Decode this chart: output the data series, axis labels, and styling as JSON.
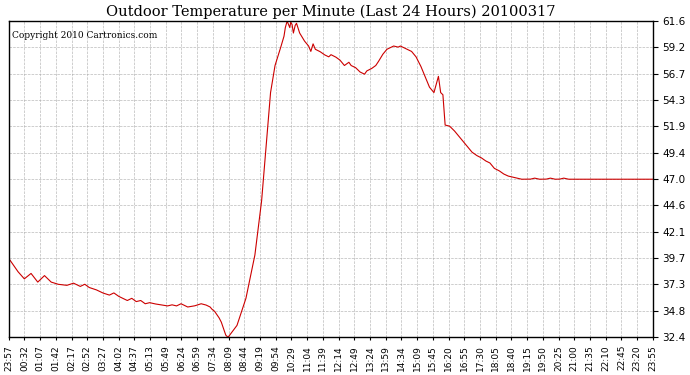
{
  "title": "Outdoor Temperature per Minute (Last 24 Hours) 20100317",
  "copyright_text": "Copyright 2010 Cartronics.com",
  "line_color": "#cc0000",
  "background_color": "#ffffff",
  "plot_bg_color": "#ffffff",
  "grid_color": "#aaaaaa",
  "ylim": [
    32.4,
    61.6
  ],
  "yticks": [
    32.4,
    34.8,
    37.3,
    39.7,
    42.1,
    44.6,
    47.0,
    49.4,
    51.9,
    54.3,
    56.7,
    59.2,
    61.6
  ],
  "xtick_labels": [
    "23:57",
    "00:32",
    "01:07",
    "01:42",
    "02:17",
    "02:52",
    "03:27",
    "04:02",
    "04:37",
    "05:13",
    "05:49",
    "06:24",
    "06:59",
    "07:34",
    "08:09",
    "08:44",
    "09:19",
    "09:54",
    "10:29",
    "11:04",
    "11:39",
    "12:14",
    "12:49",
    "13:24",
    "13:59",
    "14:34",
    "15:09",
    "15:45",
    "16:20",
    "16:55",
    "17:30",
    "18:05",
    "18:40",
    "19:15",
    "19:50",
    "20:25",
    "21:00",
    "21:35",
    "22:10",
    "22:45",
    "23:20",
    "23:55"
  ],
  "key_points_minutes": [
    [
      0,
      39.7
    ],
    [
      20,
      38.5
    ],
    [
      35,
      37.8
    ],
    [
      50,
      38.3
    ],
    [
      65,
      37.5
    ],
    [
      80,
      38.1
    ],
    [
      95,
      37.5
    ],
    [
      110,
      37.3
    ],
    [
      130,
      37.2
    ],
    [
      145,
      37.4
    ],
    [
      160,
      37.1
    ],
    [
      170,
      37.3
    ],
    [
      180,
      37.0
    ],
    [
      195,
      36.8
    ],
    [
      210,
      36.5
    ],
    [
      225,
      36.3
    ],
    [
      235,
      36.5
    ],
    [
      245,
      36.2
    ],
    [
      255,
      36.0
    ],
    [
      265,
      35.8
    ],
    [
      275,
      36.0
    ],
    [
      285,
      35.7
    ],
    [
      295,
      35.8
    ],
    [
      305,
      35.5
    ],
    [
      315,
      35.6
    ],
    [
      325,
      35.5
    ],
    [
      340,
      35.4
    ],
    [
      355,
      35.3
    ],
    [
      365,
      35.4
    ],
    [
      375,
      35.3
    ],
    [
      385,
      35.5
    ],
    [
      400,
      35.2
    ],
    [
      415,
      35.3
    ],
    [
      430,
      35.5
    ],
    [
      440,
      35.4
    ],
    [
      450,
      35.2
    ],
    [
      460,
      34.8
    ],
    [
      470,
      34.2
    ],
    [
      475,
      33.8
    ],
    [
      480,
      33.2
    ],
    [
      485,
      32.6
    ],
    [
      454,
      35.0
    ],
    [
      490,
      32.4
    ],
    [
      510,
      33.5
    ],
    [
      530,
      36.0
    ],
    [
      550,
      40.0
    ],
    [
      565,
      45.0
    ],
    [
      575,
      50.0
    ],
    [
      585,
      55.0
    ],
    [
      595,
      57.5
    ],
    [
      605,
      58.8
    ],
    [
      610,
      59.5
    ],
    [
      615,
      60.2
    ],
    [
      618,
      61.0
    ],
    [
      620,
      61.3
    ],
    [
      622,
      61.6
    ],
    [
      625,
      61.3
    ],
    [
      628,
      61.0
    ],
    [
      630,
      61.5
    ],
    [
      633,
      61.3
    ],
    [
      636,
      60.5
    ],
    [
      640,
      61.2
    ],
    [
      643,
      61.4
    ],
    [
      646,
      61.0
    ],
    [
      650,
      60.5
    ],
    [
      660,
      59.8
    ],
    [
      670,
      59.3
    ],
    [
      675,
      58.8
    ],
    [
      680,
      59.5
    ],
    [
      685,
      59.0
    ],
    [
      695,
      58.8
    ],
    [
      705,
      58.5
    ],
    [
      715,
      58.3
    ],
    [
      720,
      58.5
    ],
    [
      730,
      58.3
    ],
    [
      740,
      58.0
    ],
    [
      750,
      57.5
    ],
    [
      760,
      57.8
    ],
    [
      765,
      57.5
    ],
    [
      775,
      57.3
    ],
    [
      785,
      56.9
    ],
    [
      795,
      56.7
    ],
    [
      800,
      57.0
    ],
    [
      810,
      57.2
    ],
    [
      820,
      57.5
    ],
    [
      825,
      57.8
    ],
    [
      835,
      58.5
    ],
    [
      845,
      59.0
    ],
    [
      855,
      59.2
    ],
    [
      860,
      59.3
    ],
    [
      870,
      59.2
    ],
    [
      875,
      59.3
    ],
    [
      880,
      59.2
    ],
    [
      890,
      59.0
    ],
    [
      900,
      58.8
    ],
    [
      910,
      58.3
    ],
    [
      920,
      57.5
    ],
    [
      930,
      56.5
    ],
    [
      940,
      55.5
    ],
    [
      950,
      55.0
    ],
    [
      960,
      56.5
    ],
    [
      965,
      55.0
    ],
    [
      970,
      54.8
    ],
    [
      975,
      52.0
    ],
    [
      985,
      51.9
    ],
    [
      995,
      51.5
    ],
    [
      1005,
      51.0
    ],
    [
      1015,
      50.5
    ],
    [
      1025,
      50.0
    ],
    [
      1035,
      49.5
    ],
    [
      1045,
      49.2
    ],
    [
      1055,
      49.0
    ],
    [
      1065,
      48.7
    ],
    [
      1075,
      48.5
    ],
    [
      1085,
      48.0
    ],
    [
      1095,
      47.8
    ],
    [
      1105,
      47.5
    ],
    [
      1115,
      47.3
    ],
    [
      1125,
      47.2
    ],
    [
      1135,
      47.1
    ],
    [
      1145,
      47.0
    ],
    [
      1155,
      47.0
    ],
    [
      1165,
      47.0
    ],
    [
      1175,
      47.1
    ],
    [
      1185,
      47.0
    ],
    [
      1200,
      47.0
    ],
    [
      1210,
      47.1
    ],
    [
      1220,
      47.0
    ],
    [
      1230,
      47.0
    ],
    [
      1240,
      47.1
    ],
    [
      1250,
      47.0
    ],
    [
      1260,
      47.0
    ],
    [
      1270,
      47.0
    ],
    [
      1280,
      47.0
    ],
    [
      1290,
      47.0
    ],
    [
      1300,
      47.0
    ],
    [
      1310,
      47.0
    ],
    [
      1320,
      47.0
    ],
    [
      1330,
      47.0
    ],
    [
      1340,
      47.0
    ],
    [
      1350,
      47.0
    ],
    [
      1360,
      47.0
    ],
    [
      1370,
      47.0
    ],
    [
      1380,
      47.0
    ],
    [
      1390,
      47.0
    ],
    [
      1400,
      47.0
    ],
    [
      1410,
      47.0
    ],
    [
      1420,
      47.0
    ],
    [
      1430,
      47.0
    ],
    [
      1439,
      47.0
    ]
  ]
}
